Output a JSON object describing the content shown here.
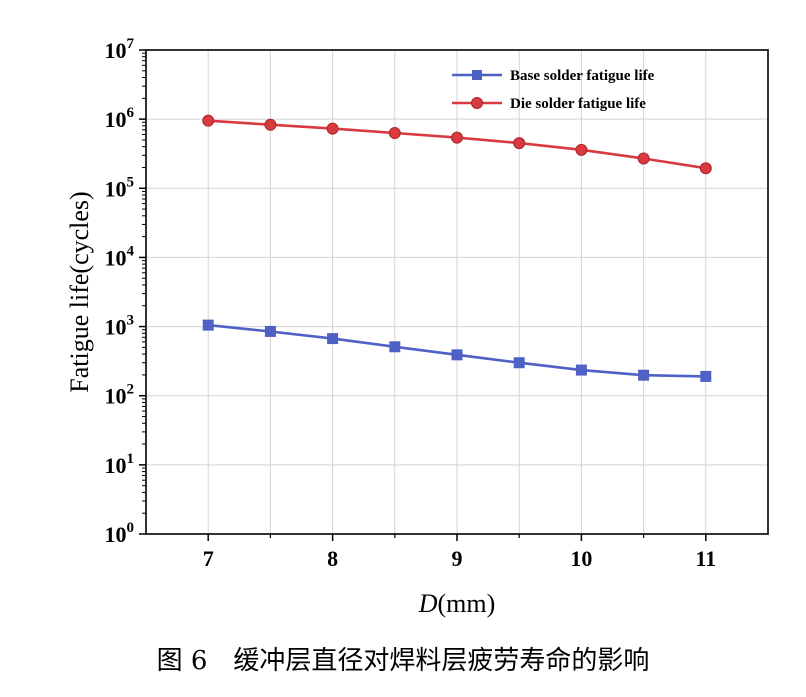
{
  "chart_data": {
    "type": "line",
    "title": "",
    "xlabel_italic": "D",
    "xlabel_rest": "(mm)",
    "ylabel": "Fatigue life(cycles)",
    "x": [
      7,
      7.5,
      8,
      8.5,
      9,
      9.5,
      10,
      10.5,
      11
    ],
    "xlim": [
      6.5,
      11.5
    ],
    "xticks": [
      "7",
      "8",
      "9",
      "10",
      "11"
    ],
    "yscale": "log",
    "ylim": [
      1,
      10000000
    ],
    "yticks": [
      {
        "base": "10",
        "exp": "0"
      },
      {
        "base": "10",
        "exp": "1"
      },
      {
        "base": "10",
        "exp": "2"
      },
      {
        "base": "10",
        "exp": "3"
      },
      {
        "base": "10",
        "exp": "4"
      },
      {
        "base": "10",
        "exp": "5"
      },
      {
        "base": "10",
        "exp": "6"
      },
      {
        "base": "10",
        "exp": "7"
      }
    ],
    "grid": true,
    "legend_position": "top-right",
    "series": [
      {
        "name": "Base solder fatigue life",
        "color": "#4f61c4",
        "marker": "square",
        "values": [
          1050,
          850,
          670,
          510,
          390,
          300,
          235,
          198,
          190
        ]
      },
      {
        "name": "Die solder fatigue life",
        "color": "#d93a3f",
        "marker": "circle",
        "values": [
          950000,
          830000,
          730000,
          630000,
          540000,
          450000,
          360000,
          270000,
          195000
        ]
      }
    ]
  },
  "caption": "图 6　缓冲层直径对焊料层疲劳寿命的影响"
}
